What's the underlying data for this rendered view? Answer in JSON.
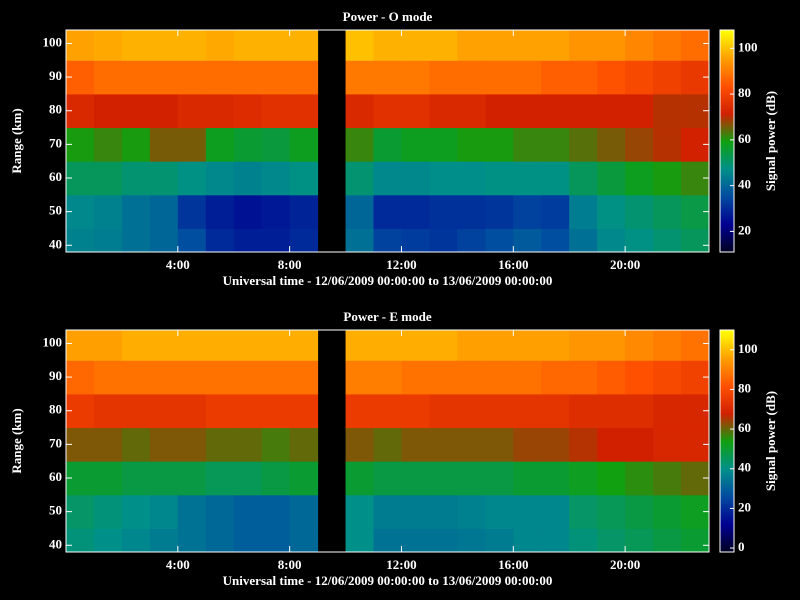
{
  "chart_data": [
    {
      "type": "heatmap",
      "title": "Power - O mode",
      "x_label": "Universal time - 12/06/2009 00:00:00 to 13/06/2009 00:00:00",
      "y_label": "Range (km)",
      "colorbar_label": "Signal power (dB)",
      "xlim": [
        0,
        23
      ],
      "xticks": [
        {
          "value": 4,
          "label": "4:00"
        },
        {
          "value": 8,
          "label": "8:00"
        },
        {
          "value": 12,
          "label": "12:00"
        },
        {
          "value": 16,
          "label": "16:00"
        },
        {
          "value": 20,
          "label": "20:00"
        }
      ],
      "ylim": [
        38,
        104
      ],
      "yticks": [
        40,
        50,
        60,
        70,
        80,
        90,
        100
      ],
      "clim": [
        11,
        108
      ],
      "cticks": [
        20,
        40,
        60,
        80,
        100
      ],
      "colormap": [
        "#000020",
        "#000090",
        "#004aa0",
        "#00908a",
        "#10a010",
        "#d02000",
        "#ff5000",
        "#ffa000",
        "#ffff00"
      ],
      "x_edges": [
        0,
        1,
        2,
        3,
        4,
        5,
        6,
        7,
        8,
        9,
        10,
        11,
        12,
        13,
        14,
        15,
        16,
        17,
        18,
        19,
        20,
        21,
        22,
        23
      ],
      "y_edges": [
        38,
        45,
        55,
        65,
        75,
        85,
        95,
        104
      ],
      "z": [
        [
          45,
          44,
          42,
          40,
          36,
          30,
          28,
          28,
          30,
          null,
          42,
          34,
          33,
          32,
          34,
          36,
          38,
          36,
          42,
          46,
          48,
          50,
          52
        ],
        [
          46,
          45,
          42,
          40,
          32,
          28,
          26,
          27,
          29,
          null,
          40,
          30,
          30,
          31,
          31,
          32,
          34,
          33,
          44,
          48,
          50,
          52,
          54
        ],
        [
          52,
          52,
          50,
          50,
          48,
          46,
          45,
          46,
          48,
          null,
          50,
          46,
          46,
          47,
          47,
          48,
          48,
          48,
          52,
          55,
          58,
          60,
          62
        ],
        [
          60,
          62,
          60,
          66,
          66,
          58,
          56,
          55,
          58,
          null,
          62,
          56,
          58,
          58,
          60,
          60,
          62,
          62,
          64,
          66,
          68,
          70,
          72
        ],
        [
          74,
          72,
          72,
          72,
          74,
          74,
          75,
          76,
          76,
          null,
          74,
          76,
          76,
          74,
          74,
          72,
          72,
          72,
          72,
          72,
          72,
          70,
          70
        ],
        [
          86,
          88,
          88,
          88,
          88,
          88,
          88,
          88,
          88,
          null,
          90,
          90,
          90,
          88,
          88,
          88,
          88,
          86,
          86,
          84,
          82,
          80,
          78
        ],
        [
          96,
          97,
          98,
          98,
          98,
          97,
          98,
          98,
          98,
          null,
          100,
          98,
          98,
          98,
          96,
          96,
          96,
          96,
          94,
          94,
          92,
          90,
          88
        ]
      ]
    },
    {
      "type": "heatmap",
      "title": "Power - E mode",
      "x_label": "Universal time - 12/06/2009 00:00:00 to 13/06/2009 00:00:00",
      "y_label": "Range (km)",
      "colorbar_label": "Signal power (dB)",
      "xlim": [
        0,
        23
      ],
      "xticks": [
        {
          "value": 4,
          "label": "4:00"
        },
        {
          "value": 8,
          "label": "8:00"
        },
        {
          "value": 12,
          "label": "12:00"
        },
        {
          "value": 16,
          "label": "16:00"
        },
        {
          "value": 20,
          "label": "20:00"
        }
      ],
      "ylim": [
        38,
        104
      ],
      "yticks": [
        40,
        50,
        60,
        70,
        80,
        90,
        100
      ],
      "clim": [
        -2,
        110
      ],
      "cticks": [
        0,
        20,
        40,
        60,
        80,
        100
      ],
      "colormap": [
        "#000020",
        "#000090",
        "#004aa0",
        "#00908a",
        "#10a010",
        "#d02000",
        "#ff5000",
        "#ffa000",
        "#ffff00"
      ],
      "x_edges": [
        0,
        1,
        2,
        3,
        4,
        5,
        6,
        7,
        8,
        9,
        10,
        11,
        12,
        13,
        14,
        15,
        16,
        17,
        18,
        19,
        20,
        21,
        22,
        23
      ],
      "y_edges": [
        38,
        45,
        55,
        65,
        75,
        85,
        95,
        104
      ],
      "z": [
        [
          42,
          40,
          38,
          36,
          34,
          32,
          30,
          30,
          32,
          null,
          40,
          34,
          34,
          34,
          35,
          36,
          38,
          38,
          42,
          44,
          46,
          48,
          50
        ],
        [
          44,
          42,
          40,
          38,
          34,
          32,
          30,
          30,
          32,
          null,
          40,
          36,
          36,
          36,
          37,
          38,
          38,
          38,
          44,
          46,
          48,
          50,
          52
        ],
        [
          50,
          50,
          48,
          48,
          48,
          46,
          46,
          48,
          50,
          null,
          50,
          48,
          48,
          48,
          48,
          48,
          50,
          50,
          52,
          54,
          56,
          58,
          60
        ],
        [
          62,
          62,
          60,
          62,
          62,
          60,
          60,
          58,
          60,
          null,
          62,
          60,
          62,
          62,
          62,
          62,
          64,
          64,
          66,
          68,
          68,
          70,
          70
        ],
        [
          76,
          74,
          74,
          74,
          74,
          76,
          76,
          76,
          76,
          null,
          76,
          76,
          76,
          74,
          74,
          74,
          74,
          74,
          72,
          72,
          72,
          70,
          70
        ],
        [
          86,
          88,
          88,
          88,
          88,
          88,
          88,
          88,
          88,
          null,
          90,
          90,
          88,
          88,
          88,
          88,
          88,
          86,
          86,
          84,
          82,
          80,
          78
        ],
        [
          96,
          96,
          98,
          98,
          98,
          98,
          98,
          98,
          98,
          null,
          98,
          98,
          98,
          98,
          96,
          96,
          96,
          96,
          94,
          94,
          92,
          90,
          88
        ]
      ]
    }
  ]
}
